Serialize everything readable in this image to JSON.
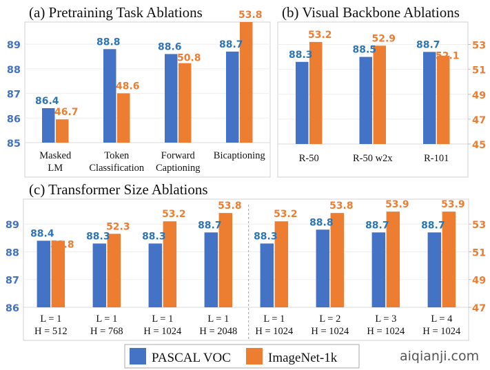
{
  "colors": {
    "pascal": "#4472C4",
    "imagenet": "#ED7D31",
    "pascal_label": "#2E75B6"
  },
  "legend": [
    {
      "name": "PASCAL VOC",
      "color": "#4472C4"
    },
    {
      "name": "ImageNet-1k",
      "color": "#ED7D31"
    }
  ],
  "watermark": "aiqianji.com",
  "chart_data": [
    {
      "type": "bar",
      "title": "(a) Pretraining Task Ablations",
      "categories": [
        [
          "Masked",
          "LM"
        ],
        [
          "Token",
          "Classification"
        ],
        [
          "Forward",
          "Captioning"
        ],
        [
          "Bicaptioning"
        ]
      ],
      "series": [
        {
          "name": "PASCAL VOC",
          "axis": "left",
          "values": [
            86.4,
            88.8,
            88.6,
            88.7
          ]
        },
        {
          "name": "ImageNet-1k",
          "axis": "right-hidden",
          "values": [
            46.7,
            48.6,
            50.8,
            53.8
          ]
        }
      ],
      "left_axis": {
        "ticks": [
          85,
          86,
          87,
          88,
          89
        ],
        "ylim": [
          85,
          89.9
        ]
      },
      "right_axis": {
        "ticks": [],
        "ylim": [
          45,
          53.8
        ]
      },
      "grid": true
    },
    {
      "type": "bar",
      "title": "(b) Visual Backbone Ablations",
      "categories": [
        [
          "R-50"
        ],
        [
          "R-50 w2x"
        ],
        [
          "R-101"
        ]
      ],
      "series": [
        {
          "name": "PASCAL VOC",
          "axis": "left-hidden",
          "values": [
            88.3,
            88.5,
            88.7
          ]
        },
        {
          "name": "ImageNet-1k",
          "axis": "right",
          "values": [
            53.2,
            52.9,
            52.1
          ]
        }
      ],
      "left_axis": {
        "ticks": [],
        "ylim": [
          85,
          89.9
        ]
      },
      "right_axis": {
        "ticks": [
          45,
          47,
          49,
          51,
          53
        ],
        "ylim": [
          45,
          54.8
        ]
      },
      "grid": true
    },
    {
      "type": "bar",
      "title": "(c) Transformer Size Ablations",
      "categories": [
        [
          "L = 1",
          "H = 512"
        ],
        [
          "L = 1",
          "H = 768"
        ],
        [
          "L = 1",
          "H = 1024"
        ],
        [
          "L = 1",
          "H = 2048"
        ],
        [
          "L = 1",
          "H = 1024"
        ],
        [
          "L = 2",
          "H  = 1024"
        ],
        [
          "L = 3",
          "H = 1024"
        ],
        [
          "L = 4",
          "H = 1024"
        ]
      ],
      "series": [
        {
          "name": "PASCAL VOC",
          "axis": "left",
          "values": [
            88.4,
            88.3,
            88.3,
            88.7,
            88.3,
            88.8,
            88.7,
            88.7
          ]
        },
        {
          "name": "ImageNet-1k",
          "axis": "right",
          "values": [
            51.8,
            52.3,
            53.2,
            53.8,
            53.2,
            53.8,
            53.9,
            53.9
          ]
        }
      ],
      "left_axis": {
        "ticks": [
          86,
          87,
          88,
          89
        ],
        "ylim": [
          86,
          89.9
        ]
      },
      "right_axis": {
        "ticks": [
          47,
          49,
          51,
          53
        ],
        "ylim": [
          47,
          54.8
        ]
      },
      "divider_after_index": 3,
      "grid": true
    }
  ]
}
